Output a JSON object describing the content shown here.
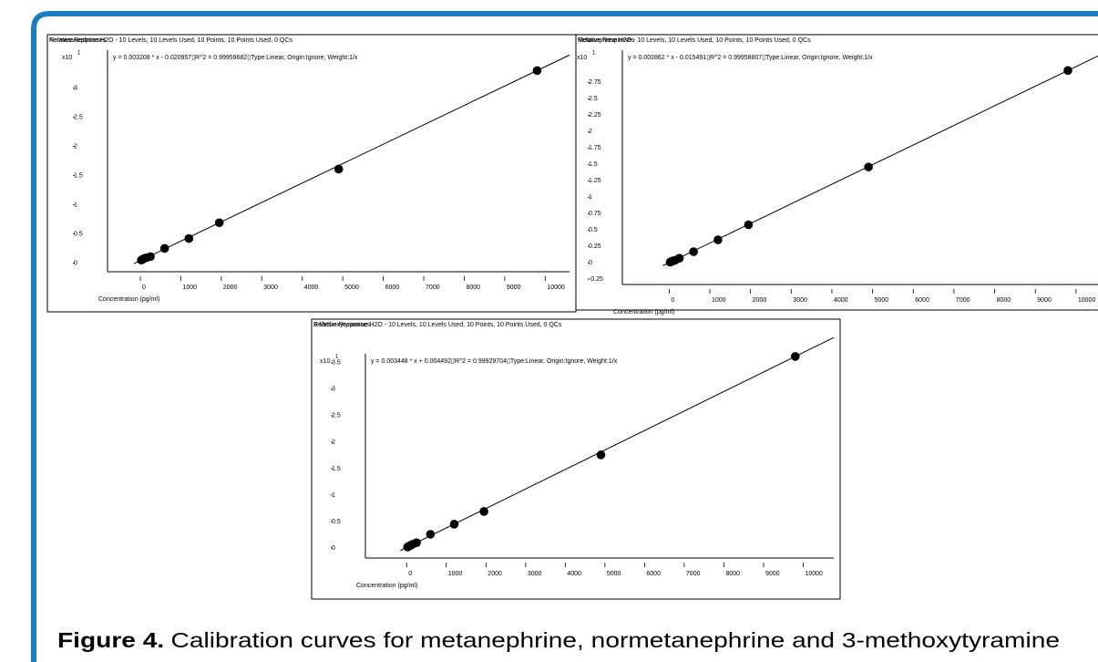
{
  "chart_data": [
    {
      "type": "scatter",
      "title": "Normetanephrine H2O - 10 Levels, 10 Levels Used, 10 Points, 10 Points Used, 0 QCs",
      "ylabel": "Relative Responses",
      "y_scale_label": "x10",
      "y_scale_exponent": "1",
      "annotation": "y = 0.003208 * x  - 0.020957▯R^2 = 0.99959682▯Type:Linear, Origin:Ignore, Weight:1/x",
      "xlabel": "Concentration (pg/ml)",
      "x": [
        25,
        50,
        100,
        150,
        250,
        600,
        1200,
        1950,
        4900,
        9800
      ],
      "values": [
        0.05,
        0.06,
        0.08,
        0.09,
        0.11,
        0.25,
        0.42,
        0.69,
        1.61,
        3.3
      ],
      "color": "#000000",
      "xlim": [
        -810,
        10600
      ],
      "xticks": [
        0,
        1000,
        2000,
        3000,
        4000,
        5000,
        6000,
        7000,
        8000,
        9000,
        10000
      ],
      "ylim": [
        -0.15,
        3.65
      ],
      "yticks": [
        0,
        0.5,
        1,
        1.5,
        2,
        2.5,
        3
      ]
    },
    {
      "type": "scatter",
      "title": "Metanephrine H2O - 10 Levels, 10 Levels Used, 10 Points, 10 Points Used, 0 QCs",
      "ylabel": "Relative Responses",
      "y_scale_label": "x10",
      "y_scale_exponent": "1",
      "annotation": "y = 0.002862 * x  - 0.015491▯R^2 = 0.99958807▯Type:Linear, Origin:Ignore, Weight:1/x",
      "xlabel": "Concentration (pg/ml)",
      "x": [
        25,
        50,
        100,
        150,
        250,
        600,
        1200,
        1950,
        4900,
        9800
      ],
      "values": [
        0.01,
        0.02,
        0.03,
        0.04,
        0.07,
        0.17,
        0.35,
        0.58,
        1.46,
        2.93
      ],
      "color": "#000000",
      "xlim": [
        -1150,
        11100
      ],
      "xticks": [
        0,
        1000,
        2000,
        3000,
        4000,
        5000,
        6000,
        7000,
        8000,
        9000,
        10000
      ],
      "ylim": [
        -0.33,
        3.24
      ],
      "yticks": [
        -0.25,
        0,
        0.25,
        0.5,
        0.75,
        1,
        1.25,
        1.5,
        1.75,
        2,
        2.25,
        2.5,
        2.75
      ]
    },
    {
      "type": "scatter",
      "title": "3-Methoxytyramine H2O - 10 Levels, 10 Levels Used, 10 Points, 10 Points Used, 0 QCs",
      "ylabel": "Relative Responses",
      "y_scale_label": "x10",
      "y_scale_exponent": "1",
      "annotation": "y = 0.003448 * x  + 0.004492▯R^2 = 0.99929704▯Type:Linear, Origin:Ignore, Weight:1/x",
      "xlabel": "Concentration (pg/ml)",
      "x": [
        25,
        50,
        100,
        150,
        250,
        600,
        1200,
        1950,
        4900,
        9800
      ],
      "values": [
        0.02,
        0.03,
        0.05,
        0.07,
        0.1,
        0.26,
        0.45,
        0.69,
        1.76,
        3.62
      ],
      "color": "#000000",
      "xlim": [
        -1040,
        10770
      ],
      "xticks": [
        0,
        1000,
        2000,
        3000,
        4000,
        5000,
        6000,
        7000,
        8000,
        9000,
        10000
      ],
      "ylim": [
        -0.19,
        3.67
      ],
      "yticks": [
        0,
        0.5,
        1,
        1.5,
        2,
        2.5,
        3,
        3.5
      ]
    }
  ],
  "caption": {
    "label": "Figure 4.",
    "text": "Calibration curves for metanephrine, normetanephrine and 3-methoxytyramine"
  }
}
